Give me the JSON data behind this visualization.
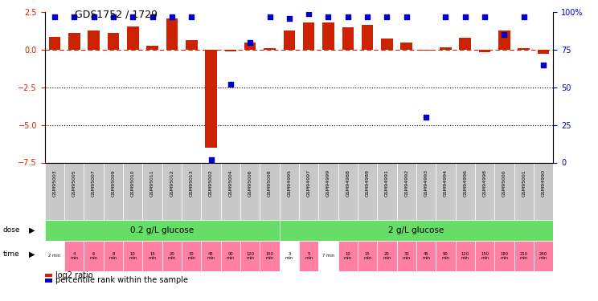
{
  "title": "GDS1752 / 1729",
  "samples": [
    "GSM95003",
    "GSM95005",
    "GSM95007",
    "GSM95009",
    "GSM95010",
    "GSM95011",
    "GSM95012",
    "GSM95013",
    "GSM95002",
    "GSM95004",
    "GSM95006",
    "GSM95008",
    "GSM94995",
    "GSM94997",
    "GSM94999",
    "GSM94988",
    "GSM94989",
    "GSM94991",
    "GSM94992",
    "GSM94993",
    "GSM94994",
    "GSM94996",
    "GSM94998",
    "GSM95000",
    "GSM95001",
    "GSM94990"
  ],
  "log2_ratio": [
    0.85,
    1.1,
    1.3,
    1.1,
    1.55,
    0.25,
    2.05,
    0.65,
    -6.5,
    -0.12,
    0.45,
    0.1,
    1.25,
    1.8,
    1.8,
    1.5,
    1.65,
    0.75,
    0.5,
    -0.08,
    0.18,
    0.8,
    -0.18,
    1.3,
    0.12,
    -0.25
  ],
  "percentile": [
    97,
    97,
    97,
    97,
    97,
    97,
    97,
    97,
    2,
    52,
    80,
    97,
    96,
    99,
    97,
    97,
    97,
    97,
    97,
    30,
    97,
    97,
    97,
    85,
    97,
    65
  ],
  "bar_color": "#CC2200",
  "dot_color": "#0000CC",
  "ylim_left": [
    -7.5,
    2.5
  ],
  "ylim_right": [
    0,
    100
  ],
  "yticks_left": [
    2.5,
    0,
    -2.5,
    -5,
    -7.5
  ],
  "yticks_right": [
    100,
    75,
    50,
    25,
    0
  ],
  "hline_zero": 0,
  "hlines_dotted": [
    -2.5,
    -5.0
  ],
  "bg_color": "#FFFFFF",
  "sample_bg": "#C8C8C8",
  "dose_bg": "#66DD66",
  "time_bg": "#FF80A0",
  "time_bg_white": "#FFFFFF",
  "g1_count": 12,
  "g2_count": 14,
  "g1_label": "0.2 g/L glucose",
  "g2_label": "2 g/L glucose",
  "time_labels": [
    "2 min",
    "4\nmin",
    "6\nmin",
    "8\nmin",
    "10\nmin",
    "15\nmin",
    "20\nmin",
    "30\nmin",
    "45\nmin",
    "90\nmin",
    "120\nmin",
    "150\nmin",
    "3\nmin",
    "5\nmin",
    "7 min",
    "10\nmin",
    "15\nmin",
    "20\nmin",
    "30\nmin",
    "45\nmin",
    "90\nmin",
    "120\nmin",
    "150\nmin",
    "180\nmin",
    "210\nmin",
    "240\nmin"
  ],
  "time_white_indices": [
    0,
    12,
    14
  ]
}
